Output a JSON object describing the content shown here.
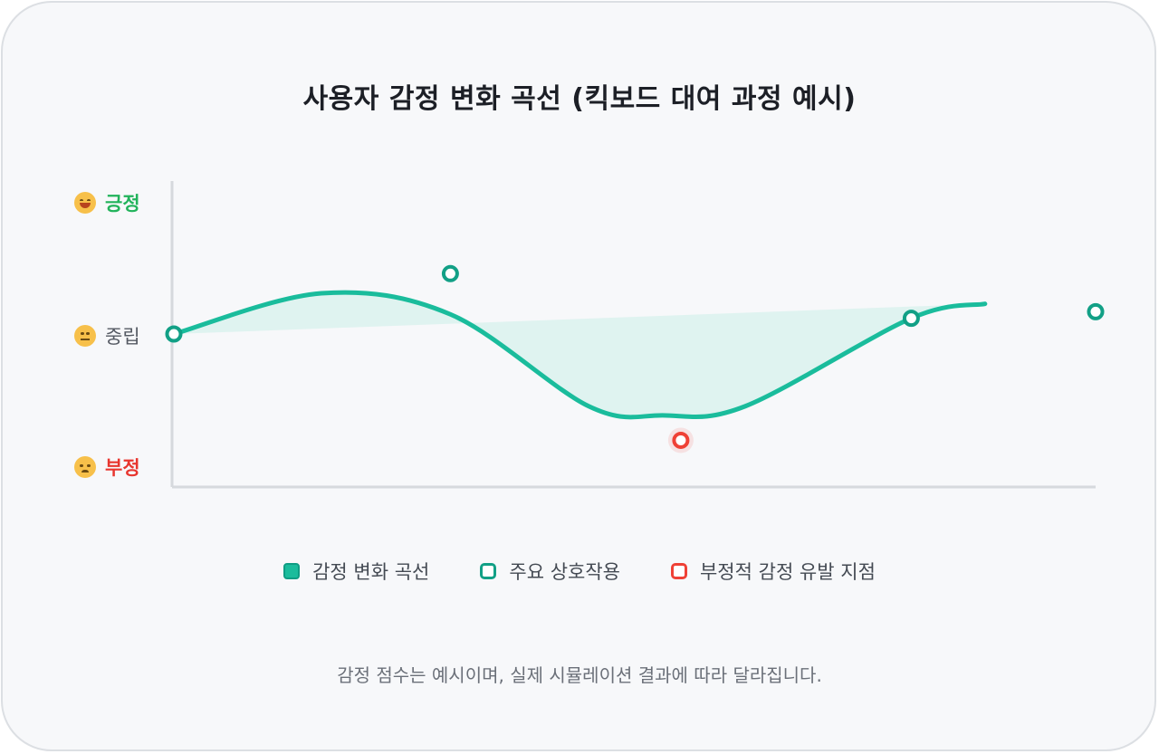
{
  "chart_data": {
    "type": "line",
    "title": "사용자 감정 변화 곡선 (킥보드 대여 과정 예시)",
    "y_labels": {
      "positive": "긍정",
      "neutral": "중립",
      "negative": "부정"
    },
    "ylim": [
      -1,
      1
    ],
    "xlim": [
      0,
      10
    ],
    "curve": [
      {
        "x": 0,
        "y": 0.0
      },
      {
        "x": 1.6,
        "y": 0.31
      },
      {
        "x": 3.0,
        "y": 0.15
      },
      {
        "x": 4.5,
        "y": -0.55
      },
      {
        "x": 5.3,
        "y": -0.62
      },
      {
        "x": 6.2,
        "y": -0.55
      },
      {
        "x": 8.0,
        "y": 0.12
      },
      {
        "x": 8.8,
        "y": 0.23
      }
    ],
    "interactions": [
      {
        "x": 0,
        "y": 0.0
      },
      {
        "x": 3.0,
        "y": 0.46
      },
      {
        "x": 8.0,
        "y": 0.12
      },
      {
        "x": 10.0,
        "y": 0.17
      }
    ],
    "negative_triggers": [
      {
        "x": 5.5,
        "y": -0.81
      }
    ],
    "legend": [
      "감정 변화 곡선",
      "주요 상호작용",
      "부정적 감정 유발 지점"
    ],
    "colors": {
      "curve": "#1abc9c",
      "interaction": "#12a086",
      "negative": "#ef4136",
      "axis": "#d6d9dd",
      "area": "#d7f1ec"
    },
    "note": "감정 점수는 예시이며, 실제 시뮬레이션 결과에 따라 달라집니다."
  },
  "emoji": {
    "positive": "smile-icon",
    "neutral": "neutral-face-icon",
    "negative": "angry-face-icon"
  }
}
